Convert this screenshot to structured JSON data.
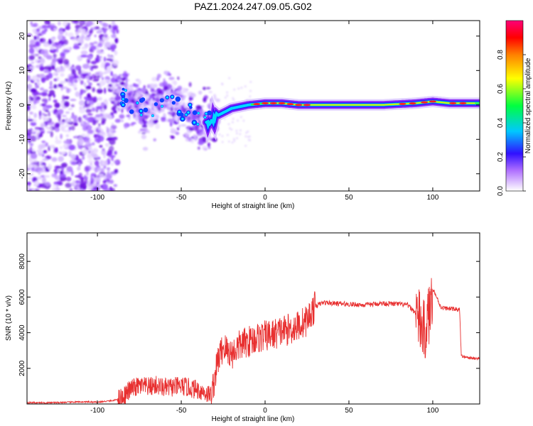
{
  "chart_data": [
    {
      "type": "heatmap",
      "title": "PAZ1.2024.247.09.05.G02",
      "xlabel": "Height of straight line (km)",
      "ylabel": "Frequency (Hz)",
      "xlim": [
        -142,
        128
      ],
      "ylim": [
        -25,
        24.5
      ],
      "xticks": [
        -100,
        -50,
        0,
        50,
        100
      ],
      "yticks": [
        20,
        10,
        0,
        -10,
        -20
      ],
      "colorbar": {
        "label": "Normalized spectral amplitude",
        "range": [
          0,
          1
        ],
        "ticks": [
          "0.0",
          "0.2",
          "0.4",
          "0.6",
          "0.8"
        ],
        "colormap": [
          "#ffffff",
          "#7a1cf0",
          "#2020ff",
          "#00e0ff",
          "#00ff30",
          "#ffff00",
          "#ff8000",
          "#ff0000",
          "#ff0078"
        ]
      },
      "ridge": {
        "x": [
          -88,
          -80,
          -70,
          -60,
          -50,
          -40,
          -33,
          -28,
          -20,
          -10,
          0,
          10,
          20,
          30,
          50,
          70,
          90,
          100,
          110,
          128
        ],
        "frequency": [
          4,
          1,
          -2,
          2,
          -1,
          -4,
          -5,
          -3,
          -1,
          0,
          0.5,
          0.5,
          0,
          0,
          0,
          0,
          0.5,
          1,
          0.5,
          0.5
        ]
      }
    },
    {
      "type": "line",
      "xlabel": "Height of straight line (km)",
      "ylabel": "SNR (10 * v/v)",
      "xlim": [
        -142,
        128
      ],
      "ylim": [
        0,
        9600
      ],
      "xticks": [
        -100,
        -50,
        0,
        50,
        100
      ],
      "yticks": [
        8000,
        6000,
        4000,
        2000
      ],
      "color": "#e83030",
      "series": [
        {
          "x": [
            -142,
            -130,
            -120,
            -110,
            -100,
            -90,
            -85,
            -80,
            -75,
            -70,
            -65,
            -60,
            -55,
            -50,
            -45,
            -40,
            -35,
            -32,
            -28,
            -25,
            -20,
            -15,
            -10,
            -5,
            0,
            5,
            10,
            15,
            20,
            25,
            30,
            35,
            40,
            50,
            60,
            70,
            80,
            85,
            90,
            95,
            98,
            100,
            105,
            110,
            116,
            117,
            120,
            128
          ],
          "values": [
            80,
            70,
            90,
            120,
            100,
            200,
            400,
            850,
            1000,
            950,
            1050,
            900,
            950,
            1000,
            900,
            800,
            600,
            500,
            2500,
            3200,
            2800,
            3300,
            3500,
            3700,
            3800,
            3900,
            4100,
            4200,
            4400,
            4700,
            5500,
            5700,
            5650,
            5600,
            5550,
            5650,
            5600,
            5550,
            5100,
            4000,
            5000,
            6500,
            5400,
            5350,
            5300,
            2700,
            2600,
            2550
          ]
        }
      ]
    }
  ]
}
